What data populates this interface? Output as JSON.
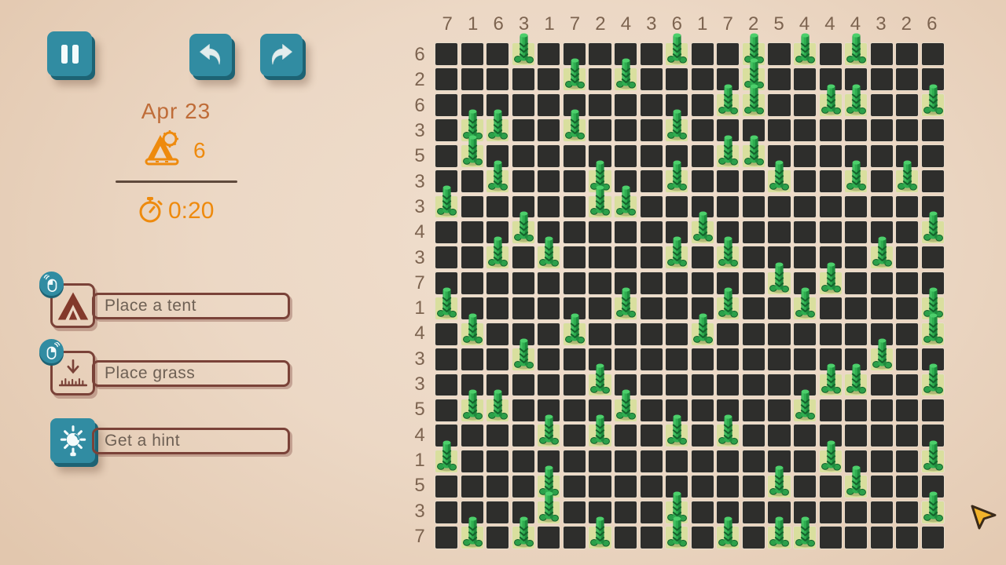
{
  "hud": {
    "date": "Apr 23",
    "tents_remaining": "6",
    "time": "0:20"
  },
  "toolbar": {
    "pause": "pause",
    "undo": "undo",
    "redo": "redo"
  },
  "actions": {
    "place_tent": {
      "label": "Place a tent",
      "badge": "mouse-left-click"
    },
    "place_grass": {
      "label": "Place grass",
      "badge": "mouse-right-click"
    },
    "hint": {
      "label": "Get a hint"
    }
  },
  "grid": {
    "rows": 20,
    "cols": 20,
    "col_clues": [
      7,
      1,
      6,
      3,
      1,
      7,
      2,
      4,
      3,
      6,
      1,
      7,
      2,
      5,
      4,
      4,
      4,
      3,
      2,
      6
    ],
    "row_clues": [
      6,
      2,
      6,
      3,
      5,
      3,
      3,
      4,
      3,
      7,
      1,
      4,
      3,
      3,
      5,
      4,
      1,
      5,
      3,
      7
    ],
    "trees": [
      [
        0,
        3
      ],
      [
        0,
        9
      ],
      [
        0,
        12
      ],
      [
        0,
        14
      ],
      [
        0,
        16
      ],
      [
        1,
        5
      ],
      [
        1,
        7
      ],
      [
        1,
        12
      ],
      [
        2,
        11
      ],
      [
        2,
        12
      ],
      [
        2,
        15
      ],
      [
        2,
        16
      ],
      [
        2,
        19
      ],
      [
        3,
        1
      ],
      [
        3,
        2
      ],
      [
        3,
        5
      ],
      [
        3,
        9
      ],
      [
        4,
        1
      ],
      [
        4,
        11
      ],
      [
        4,
        12
      ],
      [
        5,
        2
      ],
      [
        5,
        6
      ],
      [
        5,
        9
      ],
      [
        5,
        13
      ],
      [
        5,
        16
      ],
      [
        5,
        18
      ],
      [
        6,
        0
      ],
      [
        6,
        6
      ],
      [
        6,
        7
      ],
      [
        7,
        3
      ],
      [
        7,
        10
      ],
      [
        7,
        19
      ],
      [
        8,
        2
      ],
      [
        8,
        4
      ],
      [
        8,
        9
      ],
      [
        8,
        11
      ],
      [
        8,
        17
      ],
      [
        9,
        13
      ],
      [
        9,
        15
      ],
      [
        10,
        0
      ],
      [
        10,
        7
      ],
      [
        10,
        11
      ],
      [
        10,
        14
      ],
      [
        10,
        19
      ],
      [
        11,
        1
      ],
      [
        11,
        5
      ],
      [
        11,
        10
      ],
      [
        11,
        19
      ],
      [
        12,
        3
      ],
      [
        12,
        17
      ],
      [
        13,
        6
      ],
      [
        13,
        15
      ],
      [
        13,
        16
      ],
      [
        13,
        19
      ],
      [
        14,
        1
      ],
      [
        14,
        2
      ],
      [
        14,
        7
      ],
      [
        14,
        14
      ],
      [
        15,
        4
      ],
      [
        15,
        6
      ],
      [
        15,
        9
      ],
      [
        15,
        11
      ],
      [
        16,
        0
      ],
      [
        16,
        15
      ],
      [
        16,
        19
      ],
      [
        17,
        4
      ],
      [
        17,
        13
      ],
      [
        17,
        16
      ],
      [
        18,
        4
      ],
      [
        18,
        9
      ],
      [
        18,
        19
      ],
      [
        19,
        1
      ],
      [
        19,
        3
      ],
      [
        19,
        6
      ],
      [
        19,
        9
      ],
      [
        19,
        11
      ],
      [
        19,
        13
      ],
      [
        19,
        14
      ]
    ]
  },
  "colors": {
    "teal": "#318ca2",
    "teal_dark": "#1d6374",
    "orange": "#ee8a0d",
    "date_brown": "#bf6c38",
    "outline_brown": "#7a4238",
    "label_text": "#6e6054",
    "clue_text": "#7d6450",
    "cell_dark": "#2e2e2c",
    "cell_highlight": "#d9df9e",
    "tree_green": "#2fae50",
    "background": "#ecd8c5"
  }
}
